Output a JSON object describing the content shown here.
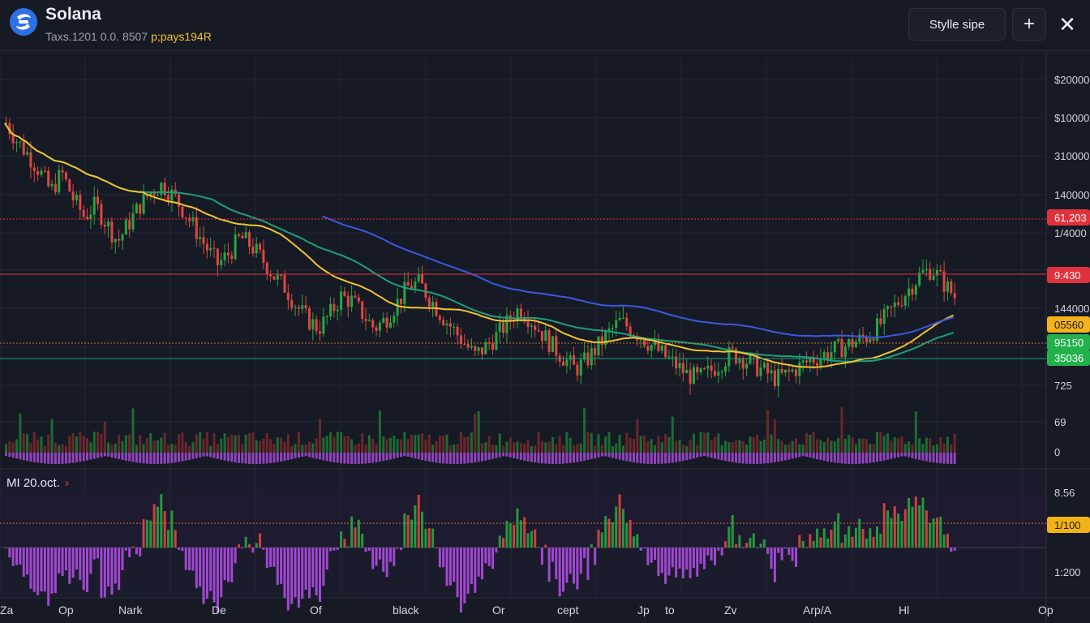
{
  "header": {
    "title": "Solana",
    "ticker_text": "Taxs.1201  0.0. 8507",
    "ticker_highlight": "p;pays194R",
    "style_button_label": "Stylle sipe",
    "add_button_label": "+",
    "close_label": "✕",
    "logo_icon": "solana-logo-icon"
  },
  "indicator": {
    "label": "MI  20.oct.",
    "chevron": "›"
  },
  "colors": {
    "background": "#161a25",
    "up": "#26a641",
    "down": "#e0463f",
    "ma_fast": "#f3c32f",
    "ma_slow": "#3c57e0",
    "ma_long": "#1f9e7a",
    "histogram_negative": "#b14de6",
    "label_red": "#e0323c",
    "label_yellow": "#f3b318",
    "label_green": "#22b24c"
  },
  "chart_data": {
    "type": "candlestick",
    "title": "Solana",
    "price_axis_labels": [
      "$200000",
      "$10000",
      "310000",
      "140000",
      "1/4000",
      "144000",
      "725",
      "69",
      "0"
    ],
    "price_tags": [
      {
        "text": "61,203",
        "kind": "red",
        "line": "dotted-red"
      },
      {
        "text": "9:430",
        "kind": "red",
        "line": "solid-red"
      },
      {
        "text": "05560",
        "kind": "yellow",
        "line": "dotted-orange"
      },
      {
        "text": "95150",
        "kind": "green",
        "line": "none"
      },
      {
        "text": "35036",
        "kind": "green",
        "line": "solid-teal"
      }
    ],
    "indicator_axis_labels": [
      "8.56",
      "1:200"
    ],
    "indicator_tags": [
      {
        "text": "1/100",
        "kind": "yellow"
      }
    ],
    "x_labels": [
      "Za",
      "Op",
      "Nark",
      "De",
      "Of",
      "black",
      "Or",
      "cept",
      "Jp",
      "to",
      "Zv",
      "Arp/A",
      "Hl",
      "Op"
    ],
    "close_series": [
      182,
      174,
      168,
      161,
      152,
      160,
      149,
      141,
      146,
      138,
      130,
      138,
      146,
      152,
      155,
      150,
      143,
      135,
      127,
      120,
      125,
      132,
      128,
      122,
      115,
      110,
      102,
      96,
      92,
      98,
      106,
      104,
      98,
      92,
      96,
      103,
      110,
      112,
      105,
      98,
      92,
      86,
      80,
      84,
      89,
      95,
      101,
      96,
      90,
      84,
      79,
      74,
      78,
      84,
      90,
      95,
      92,
      88,
      84,
      80,
      76,
      72,
      70,
      73,
      77,
      81,
      79,
      76,
      73,
      70,
      72,
      75,
      78,
      80,
      82,
      84,
      86,
      88,
      92,
      98,
      104,
      110,
      116,
      118,
      112,
      106
    ]
  }
}
